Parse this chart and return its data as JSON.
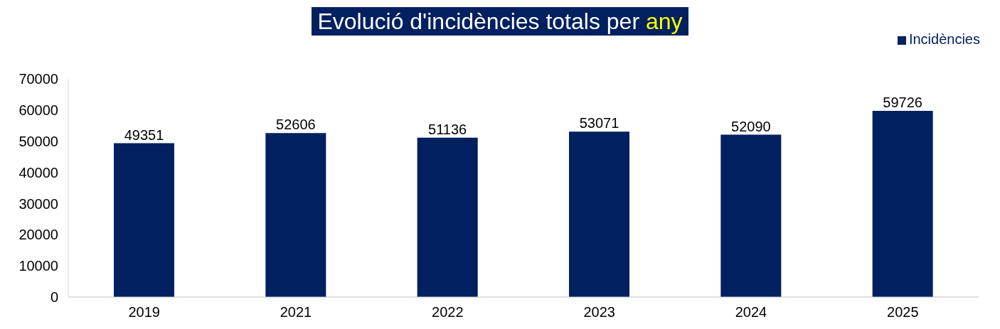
{
  "chart_data": {
    "type": "bar",
    "title": "Evolució d'incidències totals per any",
    "categories": [
      "2019",
      "2021",
      "2022",
      "2023",
      "2024",
      "2025"
    ],
    "series": [
      {
        "name": "Incidències",
        "color": "#002060",
        "values": [
          49351,
          52606,
          51136,
          53071,
          52090,
          59726
        ]
      }
    ],
    "ylim": [
      0,
      70000
    ],
    "yticks": [
      0,
      10000,
      20000,
      30000,
      40000,
      50000,
      60000,
      70000
    ],
    "data_labels": true,
    "legend": "top right",
    "grid": false
  }
}
